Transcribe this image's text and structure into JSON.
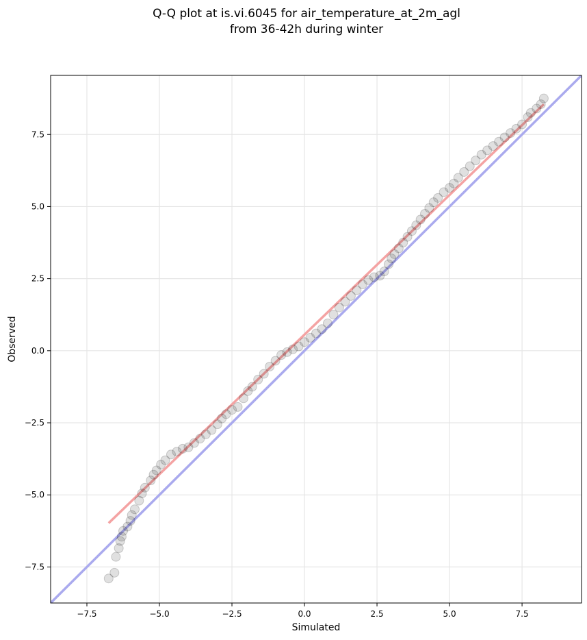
{
  "chart_data": {
    "type": "scatter",
    "title_lines": [
      "Q-Q plot at is.vi.6045 for air_temperature_at_2m_agl",
      "from 36-42h during winter"
    ],
    "xlabel": "Simulated",
    "ylabel": "Observed",
    "xlim": [
      -8.75,
      9.55
    ],
    "ylim": [
      -8.75,
      9.55
    ],
    "xticks": [
      -7.5,
      -5.0,
      -2.5,
      0.0,
      2.5,
      5.0,
      7.5
    ],
    "yticks": [
      -7.5,
      -5.0,
      -2.5,
      0.0,
      2.5,
      5.0,
      7.5
    ],
    "xtick_labels": [
      "−7.5",
      "−5.0",
      "−2.5",
      "0.0",
      "2.5",
      "5.0",
      "7.5"
    ],
    "ytick_labels": [
      "−7.5",
      "−5.0",
      "−2.5",
      "0.0",
      "2.5",
      "5.0",
      "7.5"
    ],
    "grid": true,
    "reference_line": {
      "from": [
        -8.75,
        -8.75
      ],
      "to": [
        9.55,
        9.55
      ],
      "color": "#aaaaee"
    },
    "fit_line": {
      "from": [
        -6.75,
        -5.98
      ],
      "to": [
        8.25,
        8.55
      ],
      "color": "#f4a3a3"
    },
    "points": [
      [
        -6.75,
        -7.9
      ],
      [
        -6.55,
        -7.7
      ],
      [
        -6.5,
        -7.15
      ],
      [
        -6.4,
        -6.85
      ],
      [
        -6.35,
        -6.6
      ],
      [
        -6.3,
        -6.45
      ],
      [
        -6.25,
        -6.25
      ],
      [
        -6.1,
        -6.1
      ],
      [
        -6.0,
        -5.9
      ],
      [
        -5.95,
        -5.7
      ],
      [
        -5.85,
        -5.5
      ],
      [
        -5.7,
        -5.2
      ],
      [
        -5.6,
        -4.95
      ],
      [
        -5.5,
        -4.75
      ],
      [
        -5.3,
        -4.5
      ],
      [
        -5.2,
        -4.3
      ],
      [
        -5.1,
        -4.15
      ],
      [
        -4.95,
        -3.95
      ],
      [
        -4.8,
        -3.8
      ],
      [
        -4.6,
        -3.6
      ],
      [
        -4.4,
        -3.5
      ],
      [
        -4.2,
        -3.4
      ],
      [
        -4.0,
        -3.35
      ],
      [
        -3.8,
        -3.2
      ],
      [
        -3.6,
        -3.05
      ],
      [
        -3.4,
        -2.9
      ],
      [
        -3.2,
        -2.75
      ],
      [
        -3.0,
        -2.55
      ],
      [
        -2.85,
        -2.35
      ],
      [
        -2.7,
        -2.2
      ],
      [
        -2.5,
        -2.05
      ],
      [
        -2.3,
        -1.95
      ],
      [
        -2.1,
        -1.65
      ],
      [
        -1.95,
        -1.4
      ],
      [
        -1.8,
        -1.25
      ],
      [
        -1.6,
        -1.0
      ],
      [
        -1.4,
        -0.8
      ],
      [
        -1.2,
        -0.55
      ],
      [
        -1.0,
        -0.35
      ],
      [
        -0.8,
        -0.15
      ],
      [
        -0.6,
        -0.05
      ],
      [
        -0.4,
        0.05
      ],
      [
        -0.2,
        0.15
      ],
      [
        0.0,
        0.3
      ],
      [
        0.2,
        0.45
      ],
      [
        0.4,
        0.6
      ],
      [
        0.6,
        0.75
      ],
      [
        0.8,
        0.95
      ],
      [
        1.0,
        1.25
      ],
      [
        1.2,
        1.5
      ],
      [
        1.4,
        1.7
      ],
      [
        1.6,
        1.9
      ],
      [
        1.8,
        2.1
      ],
      [
        2.0,
        2.3
      ],
      [
        2.2,
        2.45
      ],
      [
        2.4,
        2.55
      ],
      [
        2.6,
        2.6
      ],
      [
        2.75,
        2.75
      ],
      [
        2.9,
        3.0
      ],
      [
        3.0,
        3.2
      ],
      [
        3.1,
        3.35
      ],
      [
        3.25,
        3.55
      ],
      [
        3.4,
        3.75
      ],
      [
        3.55,
        3.95
      ],
      [
        3.7,
        4.15
      ],
      [
        3.85,
        4.35
      ],
      [
        4.0,
        4.55
      ],
      [
        4.15,
        4.75
      ],
      [
        4.3,
        4.95
      ],
      [
        4.45,
        5.15
      ],
      [
        4.6,
        5.3
      ],
      [
        4.8,
        5.5
      ],
      [
        5.0,
        5.65
      ],
      [
        5.15,
        5.8
      ],
      [
        5.3,
        6.0
      ],
      [
        5.5,
        6.2
      ],
      [
        5.7,
        6.4
      ],
      [
        5.9,
        6.6
      ],
      [
        6.1,
        6.8
      ],
      [
        6.3,
        6.95
      ],
      [
        6.5,
        7.1
      ],
      [
        6.7,
        7.25
      ],
      [
        6.9,
        7.4
      ],
      [
        7.1,
        7.55
      ],
      [
        7.3,
        7.7
      ],
      [
        7.5,
        7.85
      ],
      [
        7.7,
        8.1
      ],
      [
        7.8,
        8.25
      ],
      [
        8.0,
        8.4
      ],
      [
        8.15,
        8.55
      ],
      [
        8.25,
        8.75
      ]
    ],
    "point_color": "#000000"
  }
}
